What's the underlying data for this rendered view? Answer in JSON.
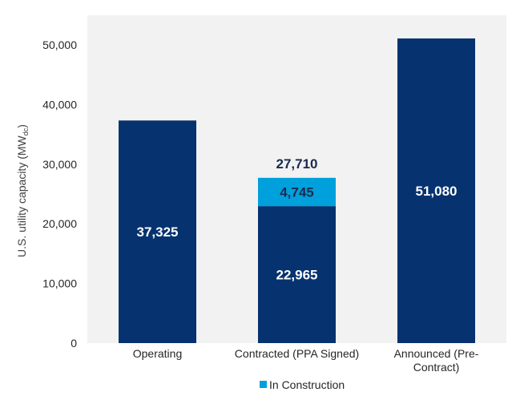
{
  "chart_data": {
    "type": "bar",
    "stacked": true,
    "title": "",
    "xlabel": "",
    "ylabel": "U.S. utility capacity (MW",
    "ylabel_subscript": "dc",
    "ylabel_suffix": ")",
    "ylim": [
      0,
      50000
    ],
    "yticks": [
      0,
      10000,
      20000,
      30000,
      40000,
      50000
    ],
    "ytick_labels": [
      "0",
      "10,000",
      "20,000",
      "30,000",
      "40,000",
      "50,000"
    ],
    "grid": false,
    "categories": [
      [
        "Operating"
      ],
      [
        "Contracted (PPA Signed)"
      ],
      [
        "Announced (Pre-",
        "Contract)"
      ]
    ],
    "series": [
      {
        "name": "Base",
        "color": "#06326F",
        "values": [
          37325,
          22965,
          51080
        ],
        "labels": [
          "37,325",
          "22,965",
          "51,080"
        ],
        "label_color": "#FFFFFF",
        "in_legend": false
      },
      {
        "name": "In Construction",
        "color": "#00A0DC",
        "values": [
          0,
          4745,
          0
        ],
        "labels": [
          "",
          "4,745",
          ""
        ],
        "label_color": "#1A2B4C",
        "in_legend": true
      }
    ],
    "totals": [
      null,
      27710,
      null
    ],
    "total_labels": [
      "",
      "27,710",
      ""
    ],
    "total_label_color": "#1A2B4C",
    "plot_background": "#F2F2F2",
    "legend_position": "bottom"
  }
}
